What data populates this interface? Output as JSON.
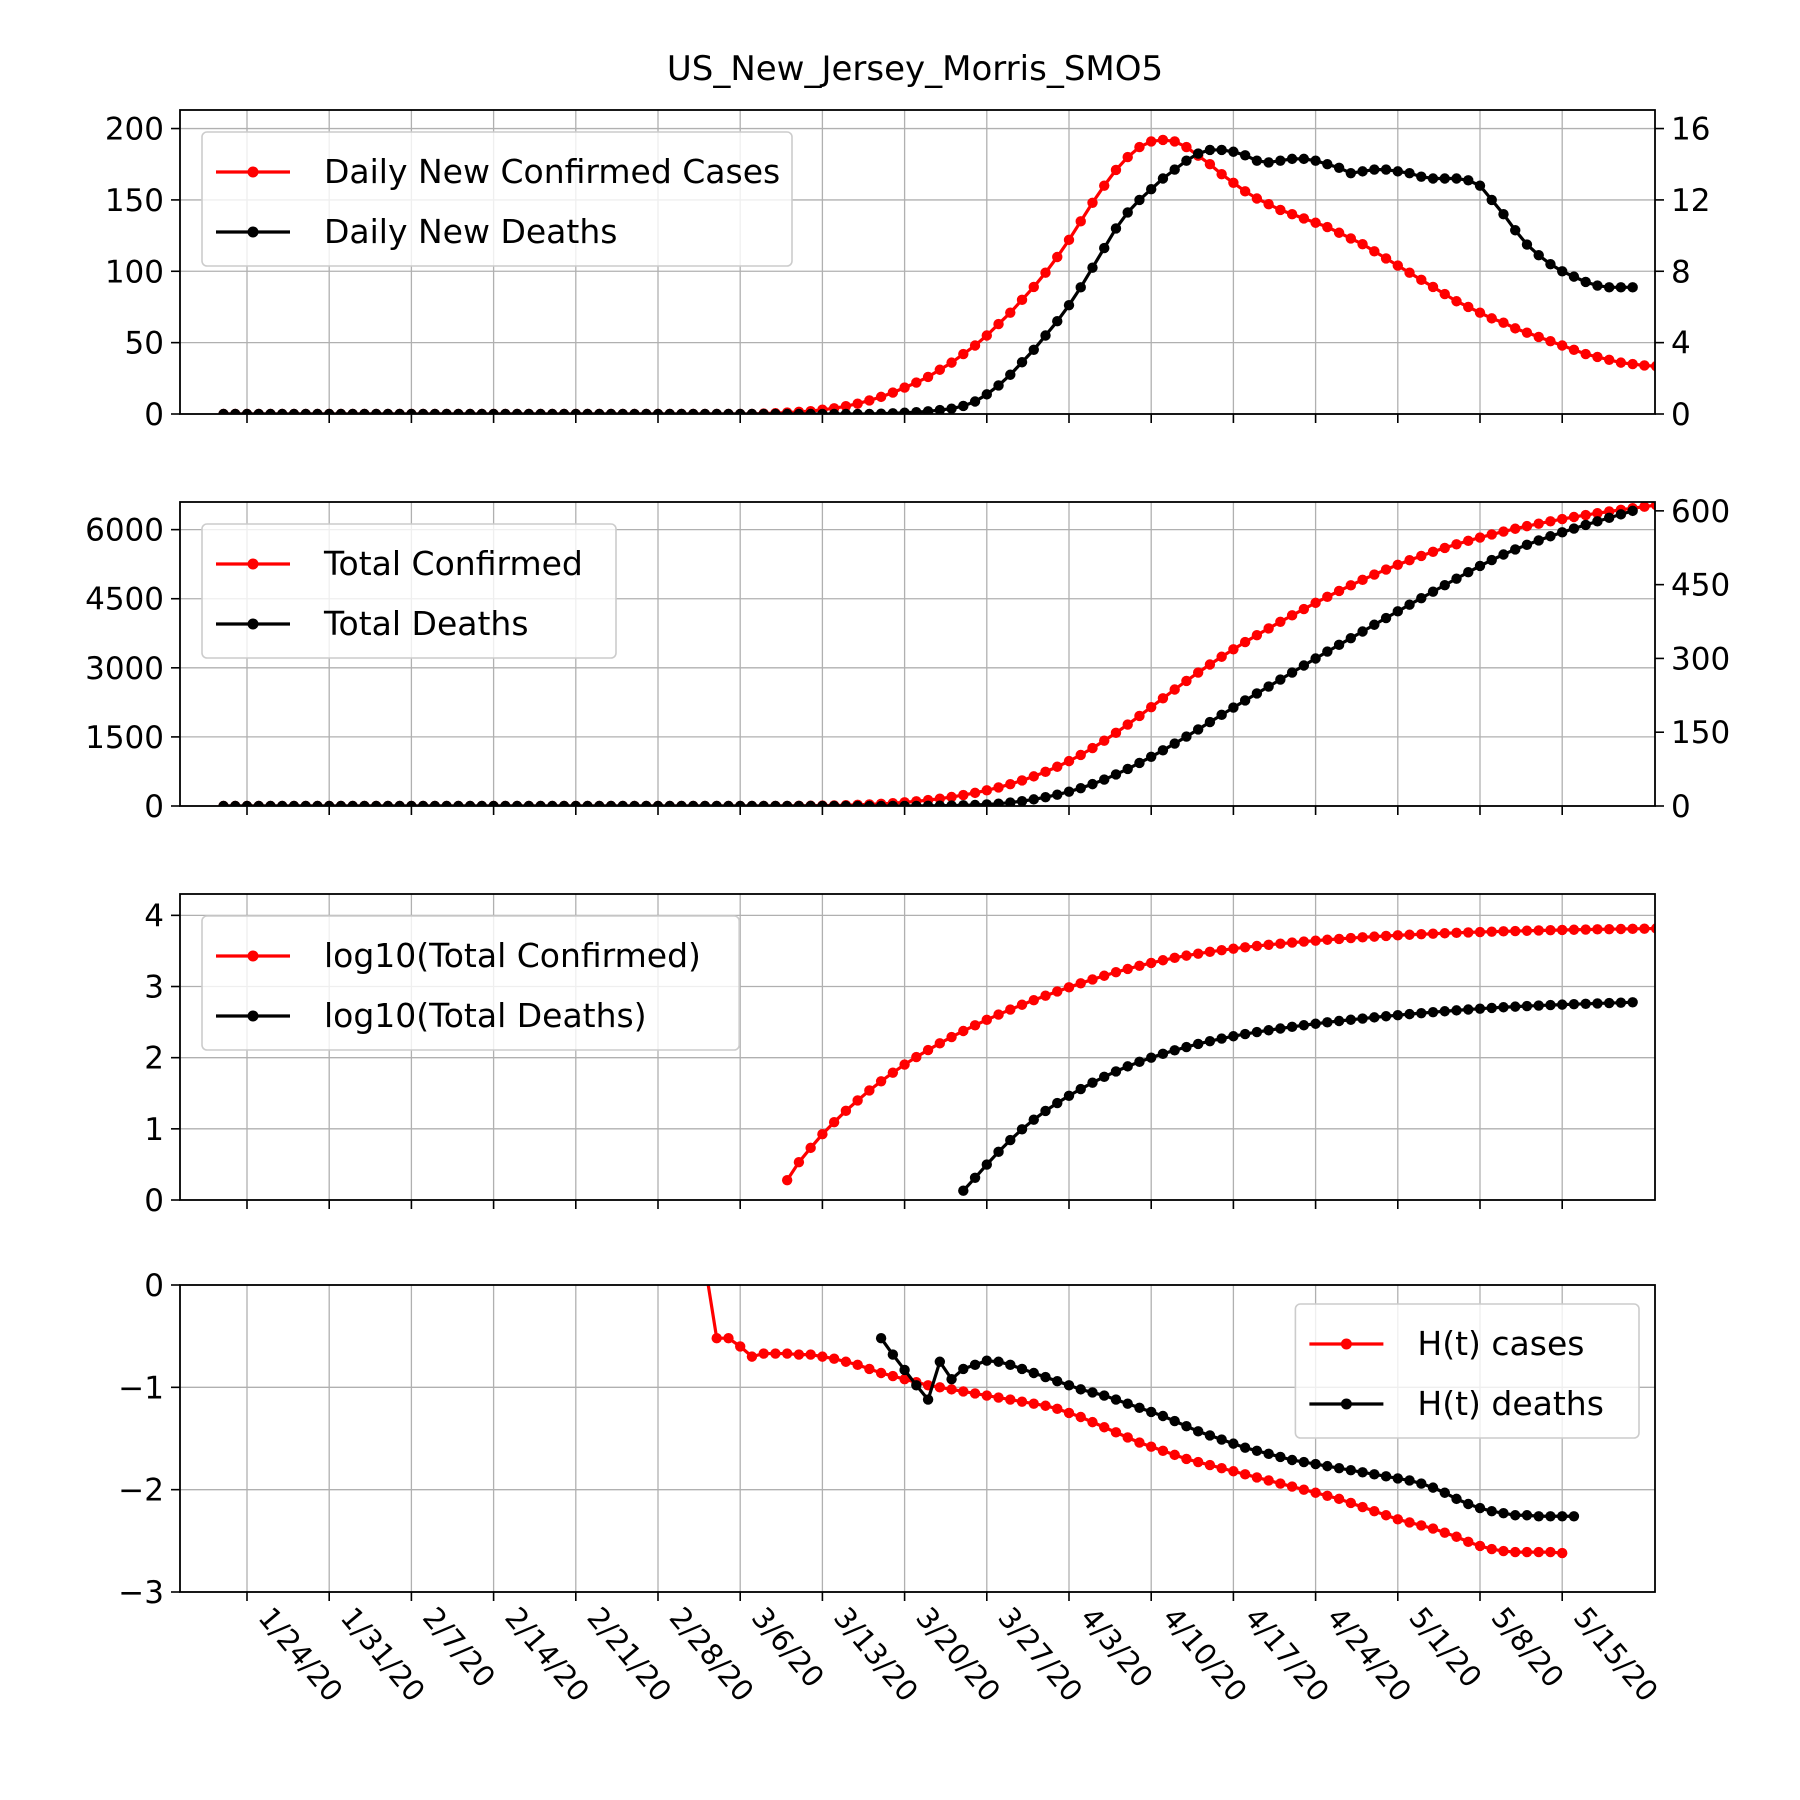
{
  "title": "US_New_Jersey_Morris_SMO5",
  "colors": {
    "cases": "#ff0000",
    "deaths": "#000000",
    "grid": "#b0b0b0"
  },
  "chart_data": [
    {
      "type": "line",
      "panel": "daily",
      "x_start_date": "2020-01-22",
      "x_tick_labels": [
        "1/24/20",
        "1/31/20",
        "2/7/20",
        "2/14/20",
        "2/21/20",
        "2/28/20",
        "3/6/20",
        "3/13/20",
        "3/20/20",
        "3/27/20",
        "4/3/20",
        "4/10/20",
        "4/17/20",
        "4/24/20",
        "5/1/20",
        "5/8/20",
        "5/15/20"
      ],
      "ylim_left": [
        0,
        213
      ],
      "yticks_left": [
        "0",
        "50",
        "100",
        "150",
        "200"
      ],
      "ylim_right": [
        0,
        17.04
      ],
      "yticks_right": [
        "0",
        "4",
        "8",
        "12",
        "16"
      ],
      "legend_position": "top-left",
      "grid": true,
      "series": [
        {
          "name": "Daily New Confirmed Cases",
          "axis": "left",
          "values": [
            0,
            0,
            0,
            0,
            0,
            0,
            0,
            0,
            0,
            0,
            0,
            0,
            0,
            0,
            0,
            0,
            0,
            0,
            0,
            0,
            0,
            0,
            0,
            0,
            0,
            0,
            0,
            0,
            0,
            0,
            0,
            0,
            0,
            0,
            0,
            0,
            0,
            0,
            0,
            0,
            0,
            0,
            0,
            0,
            0,
            0,
            0.3,
            0.6,
            1,
            1.5,
            2,
            3,
            4,
            5.5,
            7.2,
            9.5,
            12,
            15,
            18.5,
            22,
            26,
            31,
            36,
            42,
            48,
            55,
            63,
            71,
            80,
            89,
            99,
            110,
            122,
            135,
            148,
            160,
            171,
            180,
            187,
            191,
            192,
            191,
            187,
            181,
            175,
            168,
            162,
            156,
            151,
            147,
            143,
            140,
            137,
            134,
            131,
            127,
            123,
            119,
            114,
            109,
            104,
            99,
            94,
            89,
            84,
            79,
            75,
            71,
            67,
            64,
            60,
            57,
            54,
            51,
            48,
            45,
            42,
            40,
            38,
            36,
            35,
            34,
            33.5,
            33.5,
            33.5
          ]
        },
        {
          "name": "Daily New Deaths",
          "axis": "right",
          "values": [
            0,
            0,
            0,
            0,
            0,
            0,
            0,
            0,
            0,
            0,
            0,
            0,
            0,
            0,
            0,
            0,
            0,
            0,
            0,
            0,
            0,
            0,
            0,
            0,
            0,
            0,
            0,
            0,
            0,
            0,
            0,
            0,
            0,
            0,
            0,
            0,
            0,
            0,
            0,
            0,
            0,
            0,
            0,
            0,
            0,
            0,
            0,
            0,
            0,
            0,
            0,
            0,
            0,
            0,
            0,
            0,
            0.02,
            0.04,
            0.07,
            0.1,
            0.15,
            0.22,
            0.3,
            0.45,
            0.7,
            1.1,
            1.6,
            2.2,
            2.9,
            3.6,
            4.4,
            5.2,
            6.1,
            7.1,
            8.2,
            9.3,
            10.4,
            11.3,
            12,
            12.6,
            13.2,
            13.7,
            14.2,
            14.6,
            14.8,
            14.8,
            14.7,
            14.5,
            14.2,
            14.1,
            14.2,
            14.3,
            14.3,
            14.2,
            14,
            13.8,
            13.5,
            13.6,
            13.7,
            13.7,
            13.6,
            13.5,
            13.3,
            13.2,
            13.2,
            13.2,
            13.1,
            12.8,
            12,
            11.2,
            10.3,
            9.5,
            8.9,
            8.4,
            8,
            7.7,
            7.4,
            7.2,
            7.1,
            7.1,
            7.1
          ]
        }
      ]
    },
    {
      "type": "line",
      "panel": "total",
      "ylim_left": [
        0,
        6600
      ],
      "yticks_left": [
        "0",
        "1500",
        "3000",
        "4500",
        "6000"
      ],
      "ylim_right": [
        0,
        618
      ],
      "yticks_right": [
        "0",
        "150",
        "300",
        "450",
        "600"
      ],
      "legend_position": "top-left",
      "grid": true,
      "series": [
        {
          "name": "Total Confirmed",
          "axis": "left",
          "values": [
            0,
            0,
            0,
            0,
            0,
            0,
            0,
            0,
            0,
            0,
            0,
            0,
            0,
            0,
            0,
            0,
            0,
            0,
            0,
            0,
            0,
            0,
            0,
            0,
            0,
            0,
            0,
            0,
            0,
            0,
            0,
            0,
            0,
            0,
            0,
            0,
            0,
            0,
            0,
            0,
            0,
            0,
            0,
            0,
            0,
            0,
            0.3,
            0.9,
            1.9,
            3.4,
            5.4,
            8.4,
            12.4,
            17.9,
            25.1,
            34.6,
            46.6,
            61.6,
            80.1,
            102.1,
            128.1,
            159.1,
            195.1,
            237.1,
            285.1,
            340.1,
            403.1,
            474.1,
            554.1,
            643.1,
            742.1,
            852.1,
            974.1,
            1109.1,
            1257.1,
            1417.1,
            1588.1,
            1768.1,
            1955.1,
            2146.1,
            2338.1,
            2529.1,
            2716.1,
            2897.1,
            3072.1,
            3240.1,
            3402.1,
            3558.1,
            3709.1,
            3856.1,
            3999.1,
            4139.1,
            4276.1,
            4410.1,
            4541.1,
            4668.1,
            4791.1,
            4910.1,
            5024.1,
            5133.1,
            5237.1,
            5336.1,
            5430.1,
            5519.1,
            5603.1,
            5682.1,
            5757.1,
            5828.1,
            5895.1,
            5959.1,
            6019.1,
            6076.1,
            6130.1,
            6181.1,
            6229.1,
            6274.1,
            6316.1,
            6356.1,
            6394.1,
            6430.1,
            6465.1,
            6499.1,
            6532.6,
            6566.1,
            6599.6
          ]
        },
        {
          "name": "Total Deaths",
          "axis": "right",
          "values": [
            0,
            0,
            0,
            0,
            0,
            0,
            0,
            0,
            0,
            0,
            0,
            0,
            0,
            0,
            0,
            0,
            0,
            0,
            0,
            0,
            0,
            0,
            0,
            0,
            0,
            0,
            0,
            0,
            0,
            0,
            0,
            0,
            0,
            0,
            0,
            0,
            0,
            0,
            0,
            0,
            0,
            0,
            0,
            0,
            0,
            0,
            0,
            0,
            0,
            0,
            0,
            0,
            0,
            0,
            0,
            0,
            0.02,
            0.06,
            0.13,
            0.23,
            0.38,
            0.6,
            0.9,
            1.35,
            2.05,
            3.15,
            4.75,
            6.95,
            9.85,
            13.45,
            17.85,
            23.05,
            29.15,
            36.25,
            44.45,
            53.75,
            64.15,
            75.45,
            87.45,
            100.05,
            113.25,
            126.95,
            141.15,
            155.75,
            170.55,
            185.35,
            200.05,
            214.55,
            228.75,
            242.85,
            257.05,
            271.35,
            285.65,
            299.85,
            313.85,
            327.65,
            341.15,
            354.75,
            368.45,
            382.15,
            395.75,
            409.25,
            422.55,
            435.75,
            448.95,
            462.15,
            475.25,
            488.05,
            500.05,
            511.25,
            521.55,
            531.05,
            539.95,
            548.35,
            556.35,
            564.05,
            571.45,
            578.65,
            585.75,
            592.85,
            599.95
          ]
        }
      ]
    },
    {
      "type": "line",
      "panel": "log",
      "ylim_left": [
        0,
        4.3
      ],
      "yticks_left": [
        "0",
        "1",
        "2",
        "3",
        "4"
      ],
      "legend_position": "top-left",
      "grid": true,
      "series": [
        {
          "name": "log10(Total Confirmed)",
          "axis": "left",
          "derived_from": "Total Confirmed",
          "transform": "log10"
        },
        {
          "name": "log10(Total Deaths)",
          "axis": "left",
          "derived_from": "Total Deaths",
          "transform": "log10"
        }
      ]
    },
    {
      "type": "line",
      "panel": "H",
      "ylim_left": [
        -3,
        0
      ],
      "yticks_left": [
        "0",
        "−1",
        "−2",
        "−3"
      ],
      "legend_position": "top-right",
      "grid": true,
      "series": [
        {
          "name": "H(t) cases",
          "axis": "left",
          "values": [
            null,
            null,
            null,
            null,
            null,
            null,
            null,
            null,
            null,
            null,
            null,
            null,
            null,
            null,
            null,
            null,
            null,
            null,
            null,
            null,
            null,
            null,
            null,
            null,
            null,
            null,
            null,
            null,
            null,
            null,
            null,
            null,
            null,
            null,
            null,
            null,
            null,
            null,
            null,
            null,
            null,
            0.2,
            -0.52,
            -0.52,
            -0.6,
            -0.7,
            -0.67,
            -0.67,
            -0.67,
            -0.68,
            -0.68,
            -0.7,
            -0.72,
            -0.75,
            -0.78,
            -0.82,
            -0.86,
            -0.89,
            -0.92,
            -0.95,
            -0.98,
            -1.0,
            -1.02,
            -1.04,
            -1.06,
            -1.08,
            -1.1,
            -1.12,
            -1.14,
            -1.16,
            -1.18,
            -1.21,
            -1.25,
            -1.29,
            -1.34,
            -1.39,
            -1.44,
            -1.49,
            -1.54,
            -1.58,
            -1.62,
            -1.66,
            -1.7,
            -1.73,
            -1.76,
            -1.79,
            -1.82,
            -1.85,
            -1.88,
            -1.91,
            -1.94,
            -1.97,
            -2.0,
            -2.03,
            -2.06,
            -2.09,
            -2.13,
            -2.17,
            -2.21,
            -2.25,
            -2.29,
            -2.32,
            -2.35,
            -2.38,
            -2.42,
            -2.46,
            -2.51,
            -2.55,
            -2.58,
            -2.6,
            -2.61,
            -2.61,
            -2.61,
            -2.61,
            -2.62
          ]
        },
        {
          "name": "H(t) deaths",
          "axis": "left",
          "values": [
            null,
            null,
            null,
            null,
            null,
            null,
            null,
            null,
            null,
            null,
            null,
            null,
            null,
            null,
            null,
            null,
            null,
            null,
            null,
            null,
            null,
            null,
            null,
            null,
            null,
            null,
            null,
            null,
            null,
            null,
            null,
            null,
            null,
            null,
            null,
            null,
            null,
            null,
            null,
            null,
            null,
            null,
            null,
            null,
            null,
            null,
            null,
            null,
            null,
            null,
            null,
            null,
            null,
            null,
            null,
            null,
            -0.52,
            -0.68,
            -0.83,
            -0.98,
            -1.12,
            -0.75,
            -0.92,
            -0.82,
            -0.78,
            -0.74,
            -0.75,
            -0.78,
            -0.82,
            -0.86,
            -0.9,
            -0.94,
            -0.98,
            -1.02,
            -1.05,
            -1.08,
            -1.12,
            -1.16,
            -1.2,
            -1.24,
            -1.28,
            -1.33,
            -1.38,
            -1.43,
            -1.47,
            -1.51,
            -1.55,
            -1.59,
            -1.62,
            -1.65,
            -1.68,
            -1.71,
            -1.73,
            -1.75,
            -1.77,
            -1.79,
            -1.81,
            -1.83,
            -1.85,
            -1.87,
            -1.89,
            -1.91,
            -1.94,
            -1.98,
            -2.03,
            -2.09,
            -2.14,
            -2.18,
            -2.21,
            -2.23,
            -2.25,
            -2.25,
            -2.26,
            -2.26,
            -2.26,
            -2.26
          ]
        }
      ]
    }
  ]
}
